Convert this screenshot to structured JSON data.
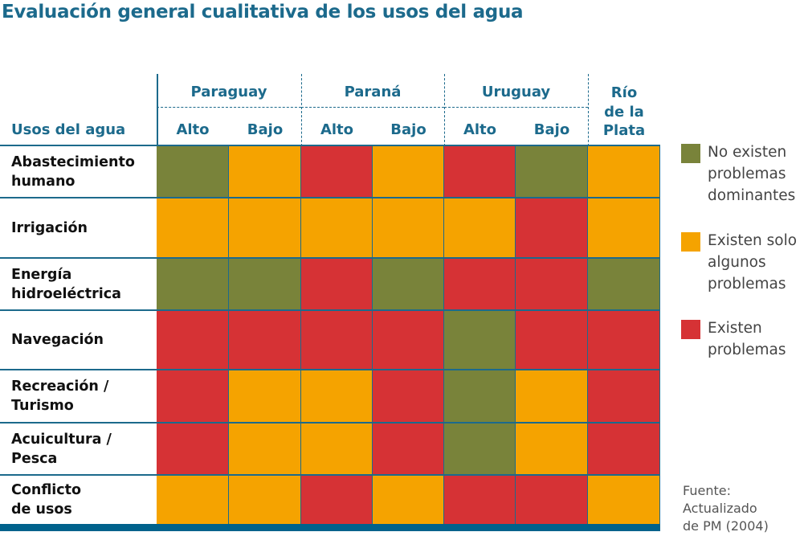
{
  "chart_data": {
    "type": "heatmap",
    "title": "Evaluación general cualitativa de los usos del agua",
    "row_header": "Usos del agua",
    "groups": [
      {
        "name": "Paraguay",
        "columns": [
          "Alto",
          "Bajo"
        ]
      },
      {
        "name": "Paraná",
        "columns": [
          "Alto",
          "Bajo"
        ]
      },
      {
        "name": "Uruguay",
        "columns": [
          "Alto",
          "Bajo"
        ]
      },
      {
        "name": "Río de la Plata",
        "columns": []
      }
    ],
    "rio_lines": [
      "Río",
      "de la",
      "Plata"
    ],
    "rows": [
      {
        "label_lines": [
          "Abastecimiento",
          "humano"
        ],
        "values": [
          "none",
          "some",
          "problems",
          "some",
          "problems",
          "none",
          "some"
        ]
      },
      {
        "label_lines": [
          "Irrigación"
        ],
        "values": [
          "some",
          "some",
          "some",
          "some",
          "some",
          "problems",
          "some"
        ]
      },
      {
        "label_lines": [
          "Energía",
          "hidroeléctrica"
        ],
        "values": [
          "none",
          "none",
          "problems",
          "none",
          "problems",
          "problems",
          "none"
        ]
      },
      {
        "label_lines": [
          "Navegación"
        ],
        "values": [
          "problems",
          "problems",
          "problems",
          "problems",
          "none",
          "problems",
          "problems"
        ]
      },
      {
        "label_lines": [
          "Recreación /",
          "Turismo"
        ],
        "values": [
          "problems",
          "some",
          "some",
          "problems",
          "none",
          "some",
          "problems"
        ]
      },
      {
        "label_lines": [
          "Acuicultura /",
          "Pesca"
        ],
        "values": [
          "problems",
          "some",
          "some",
          "problems",
          "none",
          "some",
          "problems"
        ]
      },
      {
        "label_lines": [
          "Conflicto",
          "de usos"
        ],
        "values": [
          "some",
          "some",
          "problems",
          "some",
          "problems",
          "problems",
          "some"
        ]
      }
    ],
    "legend": [
      {
        "key": "none",
        "lines": [
          "No existen",
          "problemas",
          "dominantes"
        ],
        "color": "#79833a"
      },
      {
        "key": "some",
        "lines": [
          "Existen solo",
          "algunos",
          "problemas"
        ],
        "color": "#f5a300"
      },
      {
        "key": "problems",
        "lines": [
          "Existen",
          "problemas"
        ],
        "color": "#d63235"
      }
    ],
    "legend_placement": "right"
  },
  "source_lines": [
    "Fuente:",
    "Actualizado",
    "de PM (2004)"
  ]
}
